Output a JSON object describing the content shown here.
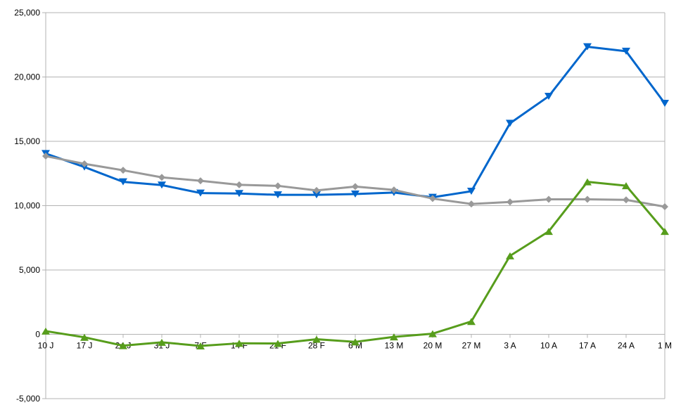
{
  "chart_data": {
    "type": "line",
    "categories": [
      "10 J",
      "17 J",
      "24 J",
      "31 J",
      "7 F",
      "14 F",
      "21 F",
      "28 F",
      "6 M",
      "13 M",
      "20 M",
      "27 M",
      "3 A",
      "10 A",
      "17 A",
      "24 A",
      "1 M"
    ],
    "y_ticks": [
      "-5,000",
      "0",
      "5,000",
      "10,000",
      "15,000",
      "20,000",
      "25,000"
    ],
    "ylim": [
      -5000,
      25000
    ],
    "y_step": 5000,
    "grid": "horizontal",
    "legend": "none",
    "series": [
      {
        "color": "#0066cc",
        "marker": "triangle-down",
        "values": [
          14050,
          13000,
          11850,
          11600,
          10980,
          10940,
          10840,
          10840,
          10900,
          11020,
          10650,
          11120,
          16400,
          18500,
          22350,
          22000,
          17950
        ]
      },
      {
        "color": "#999999",
        "marker": "diamond",
        "values": [
          13850,
          13250,
          12750,
          12200,
          11930,
          11620,
          11540,
          11180,
          11480,
          11220,
          10550,
          10130,
          10290,
          10490,
          10490,
          10450,
          9920
        ]
      },
      {
        "color": "#579d1c",
        "marker": "triangle-up",
        "values": [
          250,
          -230,
          -880,
          -620,
          -900,
          -700,
          -710,
          -380,
          -590,
          -200,
          50,
          1000,
          6100,
          8000,
          11850,
          11550,
          8000
        ]
      }
    ]
  }
}
